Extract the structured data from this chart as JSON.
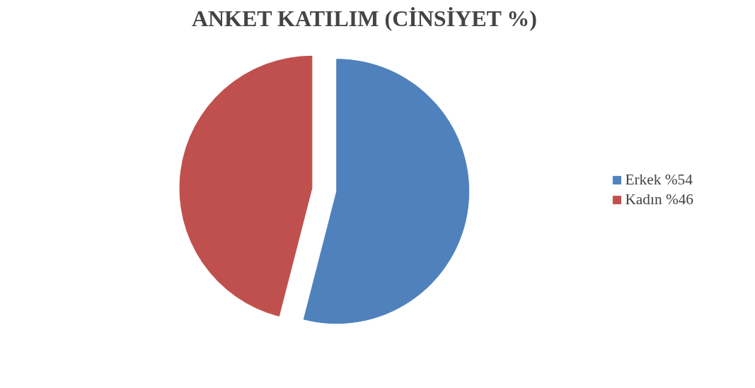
{
  "chart_data": {
    "type": "pie",
    "title": "ANKET KATILIM (CİNSİYET %)",
    "categories": [
      "Erkek %54",
      "Kadın %46"
    ],
    "values": [
      54,
      46
    ],
    "colors": [
      "#4f81bd",
      "#c0504d"
    ],
    "legend": "right"
  }
}
